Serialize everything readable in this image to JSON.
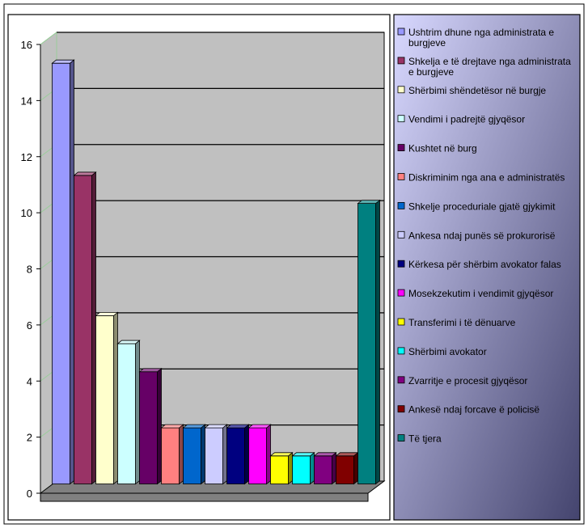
{
  "chart_data": {
    "type": "bar",
    "title": "",
    "xlabel": "",
    "ylabel": "",
    "ylim": [
      0,
      16
    ],
    "yticks": [
      0,
      2,
      4,
      6,
      8,
      10,
      12,
      14,
      16
    ],
    "grid": true,
    "legend_position": "right",
    "categories": [
      "Ushtrim dhune nga administrata e burgjeve",
      "Shkelja e të drejtave nga administrata e burgjeve",
      "Shërbimi shëndetësor në burgje",
      "Vendimi i padrejtë gjyqësor",
      "Kushtet në burg",
      "Diskriminim nga ana e administratës",
      "Shkelje proceduriale gjatë gjykimit",
      "Ankesa ndaj punës së prokurorisë",
      "Kërkesa për shërbim avokator falas",
      "Mosekzekutim i vendimit gjyqësor",
      "Transferimi i të dënuarve",
      "Shërbimi avokator",
      "Zvarritje e procesit gjyqësor",
      "Ankesë ndaj forcave ë policisë",
      "Të tjera"
    ],
    "values": [
      15,
      11,
      6,
      5,
      4,
      2,
      2,
      2,
      2,
      2,
      1,
      1,
      1,
      1,
      10
    ],
    "colors": [
      "#9999ff",
      "#993366",
      "#ffffcc",
      "#ccffff",
      "#660066",
      "#ff8080",
      "#0066cc",
      "#ccccff",
      "#000080",
      "#ff00ff",
      "#ffff00",
      "#00ffff",
      "#800080",
      "#800000",
      "#008080"
    ],
    "legend_labels": [
      [
        "Ushtrim dhune nga administrata e",
        "burgjeve"
      ],
      [
        "Shkelja e të drejtave nga administrata",
        "e burgjeve"
      ],
      [
        "Shërbimi shëndetësor në burgje"
      ],
      [
        "Vendimi i padrejtë gjyqësor"
      ],
      [
        "Kushtet në burg"
      ],
      [
        "Diskriminim nga ana e administratës"
      ],
      [
        "Shkelje proceduriale gjatë gjykimit"
      ],
      [
        "Ankesa ndaj punës së prokurorisë"
      ],
      [
        "Kërkesa për shërbim avokator falas"
      ],
      [
        "Mosekzekutim i vendimit gjyqësor"
      ],
      [
        "Transferimi i të dënuarve"
      ],
      [
        "Shërbimi avokator"
      ],
      [
        "Zvarritje e procesit gjyqësor"
      ],
      [
        "Ankesë ndaj forcave ë policisë"
      ],
      [
        "Të tjera"
      ]
    ]
  },
  "colors": {
    "wall": "#c0c0c0",
    "floor": "#808080",
    "legend_bg_start": "#d8d8ff",
    "legend_bg_end": "#44446e"
  }
}
